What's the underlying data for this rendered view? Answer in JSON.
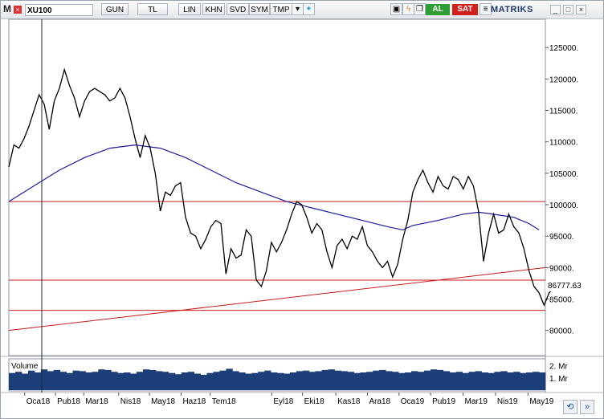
{
  "toolbar": {
    "logo": "M",
    "symbol": "XU100",
    "buttons": [
      "GUN",
      "TL",
      "LIN",
      "KHN",
      "SVD",
      "SYM",
      "TMP"
    ],
    "buy_label": "AL",
    "sell_label": "SAT",
    "brand": "MATRIKS",
    "icons": [
      "close-icon",
      "dropdown-icon",
      "twitter-icon",
      "pin-icon",
      "refresh-icon",
      "copy-icon",
      "menu-icon",
      "minimize-icon",
      "maximize-icon",
      "window-close-icon"
    ]
  },
  "chart": {
    "last_price_label": "86777.63",
    "volume_title": "Volume",
    "volume_axis_labels": [
      "2. Mr",
      "1. Mr"
    ],
    "colors": {
      "price": "#000000",
      "moving_average": "#1b1b9e",
      "support_resistance": "#cc1b1b",
      "trendline": "#cc1b1b",
      "volume": "#1c3f7a",
      "cursor": "#1a2a3a"
    }
  },
  "chart_data": {
    "type": "line",
    "y_axis": {
      "ticks": [
        80000,
        85000,
        90000,
        95000,
        100000,
        105000,
        110000,
        115000,
        120000,
        125000
      ],
      "tick_labels": [
        "80000.",
        "85000.",
        "90000.",
        "95000.",
        "100000.",
        "105000.",
        "110000.",
        "115000.",
        "120000.",
        "125000."
      ],
      "range": [
        76000,
        129500
      ]
    },
    "x_axis": {
      "tick_labels": [
        "Oca18",
        "Pub18",
        "Mar18",
        "Nis18",
        "May18",
        "Haz18",
        "Tem18",
        "Eyl18",
        "Eki18",
        "Kas18",
        "Ara18",
        "Oca19",
        "Pub19",
        "Mar19",
        "Nis19",
        "May19"
      ],
      "range": [
        0,
        85
      ]
    },
    "series": [
      {
        "role": "price",
        "points": [
          [
            0,
            106000
          ],
          [
            0.8,
            109500
          ],
          [
            1.6,
            109000
          ],
          [
            2.4,
            110500
          ],
          [
            3.2,
            112500
          ],
          [
            4,
            115000
          ],
          [
            4.8,
            117500
          ],
          [
            5.6,
            116000
          ],
          [
            6.4,
            112000
          ],
          [
            7.2,
            116500
          ],
          [
            8,
            118500
          ],
          [
            8.8,
            121500
          ],
          [
            9.6,
            119000
          ],
          [
            10.4,
            117000
          ],
          [
            11.2,
            114000
          ],
          [
            12,
            116500
          ],
          [
            12.8,
            118000
          ],
          [
            13.6,
            118500
          ],
          [
            14.4,
            118000
          ],
          [
            15.2,
            117500
          ],
          [
            16,
            116500
          ],
          [
            16.8,
            117000
          ],
          [
            17.6,
            118500
          ],
          [
            18.4,
            117000
          ],
          [
            19.2,
            114000
          ],
          [
            20,
            110500
          ],
          [
            20.8,
            107500
          ],
          [
            21.6,
            111000
          ],
          [
            22.4,
            109000
          ],
          [
            23.2,
            105000
          ],
          [
            24,
            99000
          ],
          [
            24.8,
            102000
          ],
          [
            25.6,
            101500
          ],
          [
            26.4,
            103000
          ],
          [
            27.2,
            103500
          ],
          [
            28,
            98000
          ],
          [
            28.8,
            95500
          ],
          [
            29.6,
            95000
          ],
          [
            30.4,
            93000
          ],
          [
            31.2,
            94500
          ],
          [
            32,
            96500
          ],
          [
            32.8,
            97500
          ],
          [
            33.6,
            97000
          ],
          [
            34.4,
            89000
          ],
          [
            35.2,
            93000
          ],
          [
            36,
            91500
          ],
          [
            36.8,
            92000
          ],
          [
            37.6,
            96000
          ],
          [
            38.4,
            95000
          ],
          [
            39.2,
            88000
          ],
          [
            40,
            87000
          ],
          [
            40.8,
            89500
          ],
          [
            41.6,
            94000
          ],
          [
            42.4,
            92500
          ],
          [
            43.2,
            94000
          ],
          [
            44,
            96000
          ],
          [
            44.8,
            98500
          ],
          [
            45.6,
            100500
          ],
          [
            46.4,
            100000
          ],
          [
            47.2,
            98000
          ],
          [
            48,
            95500
          ],
          [
            48.8,
            97000
          ],
          [
            49.6,
            96000
          ],
          [
            50.4,
            92500
          ],
          [
            51.2,
            90000
          ],
          [
            52,
            93500
          ],
          [
            52.8,
            94500
          ],
          [
            53.6,
            93000
          ],
          [
            54.4,
            95000
          ],
          [
            55.2,
            94500
          ],
          [
            56,
            96500
          ],
          [
            56.8,
            93500
          ],
          [
            57.6,
            92500
          ],
          [
            58.4,
            91000
          ],
          [
            59.2,
            90000
          ],
          [
            60,
            91000
          ],
          [
            60.8,
            88500
          ],
          [
            61.6,
            90500
          ],
          [
            62.4,
            94500
          ],
          [
            63.2,
            97500
          ],
          [
            64,
            102000
          ],
          [
            64.8,
            104000
          ],
          [
            65.6,
            105500
          ],
          [
            66.4,
            103500
          ],
          [
            67.2,
            102000
          ],
          [
            68,
            104500
          ],
          [
            68.8,
            103000
          ],
          [
            69.6,
            102500
          ],
          [
            70.4,
            104500
          ],
          [
            71.2,
            104000
          ],
          [
            72,
            102500
          ],
          [
            72.8,
            104500
          ],
          [
            73.6,
            103000
          ],
          [
            74.4,
            99000
          ],
          [
            75.2,
            91000
          ],
          [
            76,
            95500
          ],
          [
            76.8,
            98500
          ],
          [
            77.6,
            95500
          ],
          [
            78.4,
            96000
          ],
          [
            79.2,
            98500
          ],
          [
            80,
            96500
          ],
          [
            80.8,
            95500
          ],
          [
            81.6,
            93000
          ],
          [
            82.4,
            89500
          ],
          [
            83.2,
            87000
          ],
          [
            84,
            86000
          ],
          [
            84.8,
            84000
          ],
          [
            85.6,
            86000
          ],
          [
            86.4,
            86800
          ]
        ]
      },
      {
        "role": "moving_average",
        "points": [
          [
            0,
            100500
          ],
          [
            4,
            103000
          ],
          [
            8,
            105500
          ],
          [
            12,
            107500
          ],
          [
            16,
            109000
          ],
          [
            20,
            109500
          ],
          [
            24,
            109000
          ],
          [
            28,
            107500
          ],
          [
            32,
            105500
          ],
          [
            36,
            103500
          ],
          [
            40,
            102000
          ],
          [
            44,
            100500
          ],
          [
            48,
            99500
          ],
          [
            52,
            98500
          ],
          [
            56,
            97500
          ],
          [
            60,
            96500
          ],
          [
            62.4,
            96000
          ],
          [
            64,
            96700
          ],
          [
            68,
            97500
          ],
          [
            72,
            98500
          ],
          [
            74.4,
            98800
          ],
          [
            76,
            98600
          ],
          [
            80,
            98000
          ],
          [
            82.4,
            97000
          ],
          [
            84,
            96000
          ]
        ]
      }
    ],
    "volume": {
      "range": [
        0,
        2500000000
      ],
      "values": [
        1400000000,
        1500000000,
        1350000000,
        1600000000,
        1450000000,
        1700000000,
        1550000000,
        1650000000,
        1500000000,
        1400000000,
        1600000000,
        1550000000,
        1450000000,
        1500000000,
        1700000000,
        1650000000,
        1500000000,
        1400000000,
        1450000000,
        1350000000,
        1500000000,
        1700000000,
        1650000000,
        1550000000,
        1500000000,
        1400000000,
        1300000000,
        1450000000,
        1500000000,
        1350000000,
        1250000000,
        1400000000,
        1500000000,
        1600000000,
        1750000000,
        1550000000,
        1450000000,
        1350000000,
        1400000000,
        1500000000,
        1600000000,
        1450000000,
        1400000000,
        1350000000,
        1450000000,
        1550000000,
        1600000000,
        1500000000,
        1550000000,
        1650000000,
        1700000000,
        1600000000,
        1550000000,
        1500000000,
        1400000000,
        1450000000,
        1500000000,
        1600000000,
        1650000000,
        1550000000,
        1500000000,
        1400000000,
        1450000000,
        1550000000,
        1500000000,
        1600000000,
        1700000000,
        1650000000,
        1550000000,
        1450000000,
        1500000000,
        1400000000,
        1500000000,
        1550000000,
        1450000000,
        1400000000,
        1500000000,
        1550000000,
        1450000000,
        1500000000,
        1400000000,
        1450000000,
        1500000000,
        1450000000
      ]
    }
  }
}
